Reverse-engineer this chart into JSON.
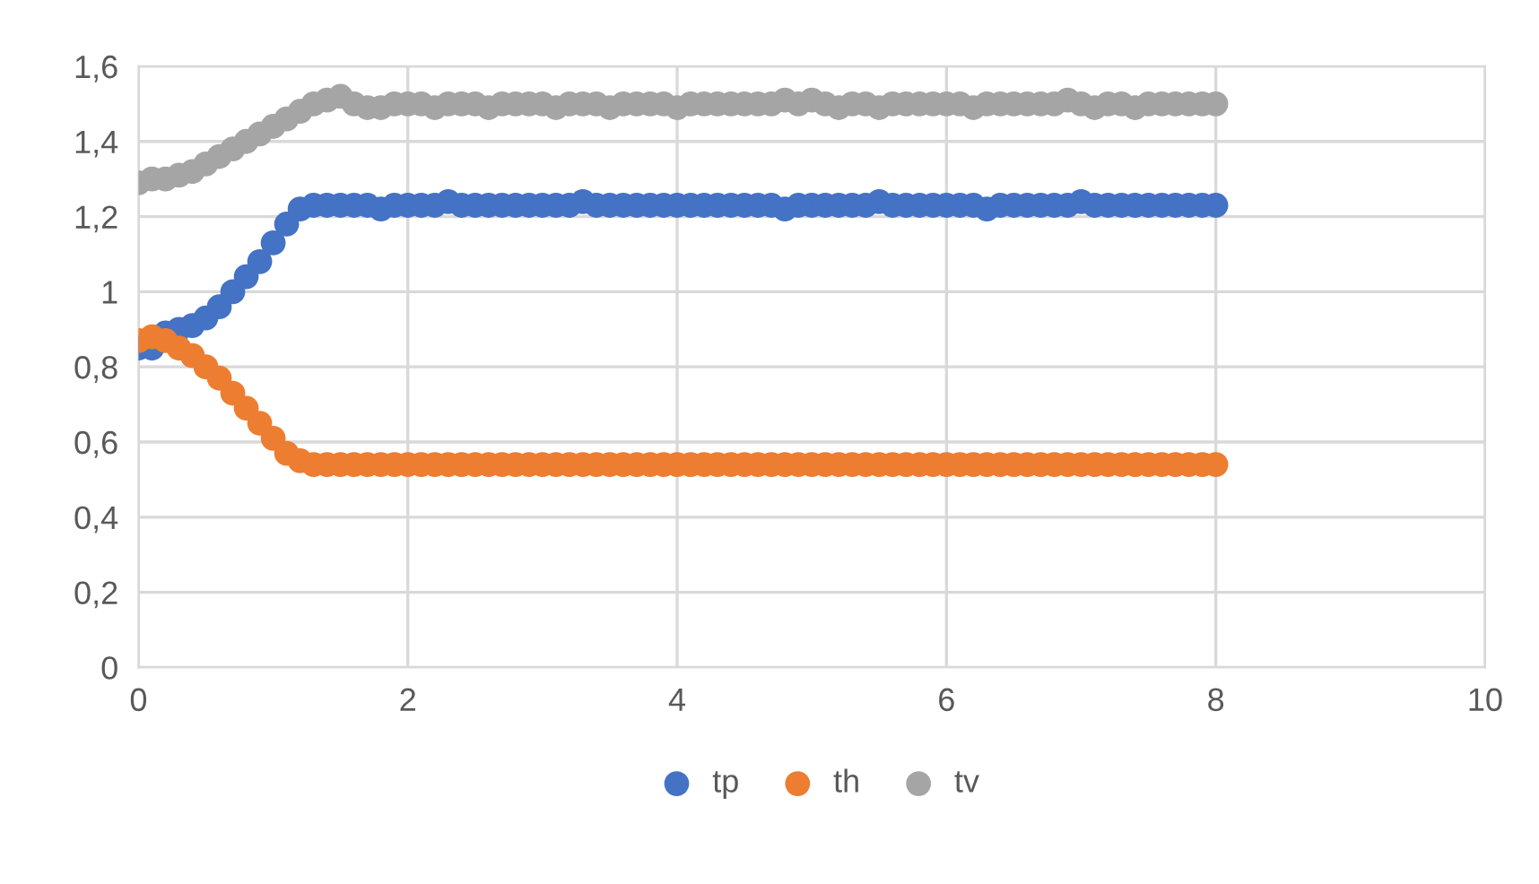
{
  "chart_data": {
    "type": "scatter",
    "x": [
      0,
      0.1,
      0.2,
      0.3,
      0.4,
      0.5,
      0.6,
      0.7,
      0.8,
      0.9,
      1.0,
      1.1,
      1.2,
      1.3,
      1.4,
      1.5,
      1.6,
      1.7,
      1.8,
      1.9,
      2.0,
      2.1,
      2.2,
      2.3,
      2.4,
      2.5,
      2.6,
      2.7,
      2.8,
      2.9,
      3.0,
      3.1,
      3.2,
      3.3,
      3.4,
      3.5,
      3.6,
      3.7,
      3.8,
      3.9,
      4.0,
      4.1,
      4.2,
      4.3,
      4.4,
      4.5,
      4.6,
      4.7,
      4.8,
      4.9,
      5.0,
      5.1,
      5.2,
      5.3,
      5.4,
      5.5,
      5.6,
      5.7,
      5.8,
      5.9,
      6.0,
      6.1,
      6.2,
      6.3,
      6.4,
      6.5,
      6.6,
      6.7,
      6.8,
      6.9,
      7.0,
      7.1,
      7.2,
      7.3,
      7.4,
      7.5,
      7.6,
      7.7,
      7.8,
      7.9,
      8.0
    ],
    "series": [
      {
        "name": "tp",
        "color": "#4472c4",
        "values": [
          0.85,
          0.85,
          0.89,
          0.9,
          0.91,
          0.93,
          0.96,
          1.0,
          1.04,
          1.08,
          1.13,
          1.18,
          1.22,
          1.23,
          1.23,
          1.23,
          1.23,
          1.23,
          1.22,
          1.23,
          1.23,
          1.23,
          1.23,
          1.24,
          1.23,
          1.23,
          1.23,
          1.23,
          1.23,
          1.23,
          1.23,
          1.23,
          1.23,
          1.24,
          1.23,
          1.23,
          1.23,
          1.23,
          1.23,
          1.23,
          1.23,
          1.23,
          1.23,
          1.23,
          1.23,
          1.23,
          1.23,
          1.23,
          1.22,
          1.23,
          1.23,
          1.23,
          1.23,
          1.23,
          1.23,
          1.24,
          1.23,
          1.23,
          1.23,
          1.23,
          1.23,
          1.23,
          1.23,
          1.22,
          1.23,
          1.23,
          1.23,
          1.23,
          1.23,
          1.23,
          1.24,
          1.23,
          1.23,
          1.23,
          1.23,
          1.23,
          1.23,
          1.23,
          1.23,
          1.23,
          1.23
        ]
      },
      {
        "name": "th",
        "color": "#ed7d31",
        "values": [
          0.87,
          0.88,
          0.87,
          0.85,
          0.83,
          0.8,
          0.77,
          0.73,
          0.69,
          0.65,
          0.61,
          0.57,
          0.55,
          0.54,
          0.54,
          0.54,
          0.54,
          0.54,
          0.54,
          0.54,
          0.54,
          0.54,
          0.54,
          0.54,
          0.54,
          0.54,
          0.54,
          0.54,
          0.54,
          0.54,
          0.54,
          0.54,
          0.54,
          0.54,
          0.54,
          0.54,
          0.54,
          0.54,
          0.54,
          0.54,
          0.54,
          0.54,
          0.54,
          0.54,
          0.54,
          0.54,
          0.54,
          0.54,
          0.54,
          0.54,
          0.54,
          0.54,
          0.54,
          0.54,
          0.54,
          0.54,
          0.54,
          0.54,
          0.54,
          0.54,
          0.54,
          0.54,
          0.54,
          0.54,
          0.54,
          0.54,
          0.54,
          0.54,
          0.54,
          0.54,
          0.54,
          0.54,
          0.54,
          0.54,
          0.54,
          0.54,
          0.54,
          0.54,
          0.54,
          0.54,
          0.54
        ]
      },
      {
        "name": "tv",
        "color": "#a5a5a5",
        "values": [
          1.29,
          1.3,
          1.3,
          1.31,
          1.32,
          1.34,
          1.36,
          1.38,
          1.4,
          1.42,
          1.44,
          1.46,
          1.48,
          1.5,
          1.51,
          1.52,
          1.5,
          1.49,
          1.49,
          1.5,
          1.5,
          1.5,
          1.49,
          1.5,
          1.5,
          1.5,
          1.49,
          1.5,
          1.5,
          1.5,
          1.5,
          1.49,
          1.5,
          1.5,
          1.5,
          1.49,
          1.5,
          1.5,
          1.5,
          1.5,
          1.49,
          1.5,
          1.5,
          1.5,
          1.5,
          1.5,
          1.5,
          1.5,
          1.51,
          1.5,
          1.51,
          1.5,
          1.49,
          1.5,
          1.5,
          1.49,
          1.5,
          1.5,
          1.5,
          1.5,
          1.5,
          1.5,
          1.49,
          1.5,
          1.5,
          1.5,
          1.5,
          1.5,
          1.5,
          1.51,
          1.5,
          1.49,
          1.5,
          1.5,
          1.49,
          1.5,
          1.5,
          1.5,
          1.5,
          1.5,
          1.5
        ]
      }
    ],
    "xlim": [
      0,
      10
    ],
    "xticks": [
      0,
      2,
      4,
      6,
      8,
      10
    ],
    "ylim": [
      0,
      1.6
    ],
    "yticks": [
      {
        "value": 0,
        "label": "0"
      },
      {
        "value": 0.2,
        "label": "0,2"
      },
      {
        "value": 0.4,
        "label": "0,4"
      },
      {
        "value": 0.6,
        "label": "0,6"
      },
      {
        "value": 0.8,
        "label": "0,8"
      },
      {
        "value": 1,
        "label": "1"
      },
      {
        "value": 1.2,
        "label": "1,2"
      },
      {
        "value": 1.4,
        "label": "1,4"
      },
      {
        "value": 1.6,
        "label": "1,6"
      }
    ],
    "grid": true,
    "legend": "bottom",
    "marker": "circle"
  }
}
